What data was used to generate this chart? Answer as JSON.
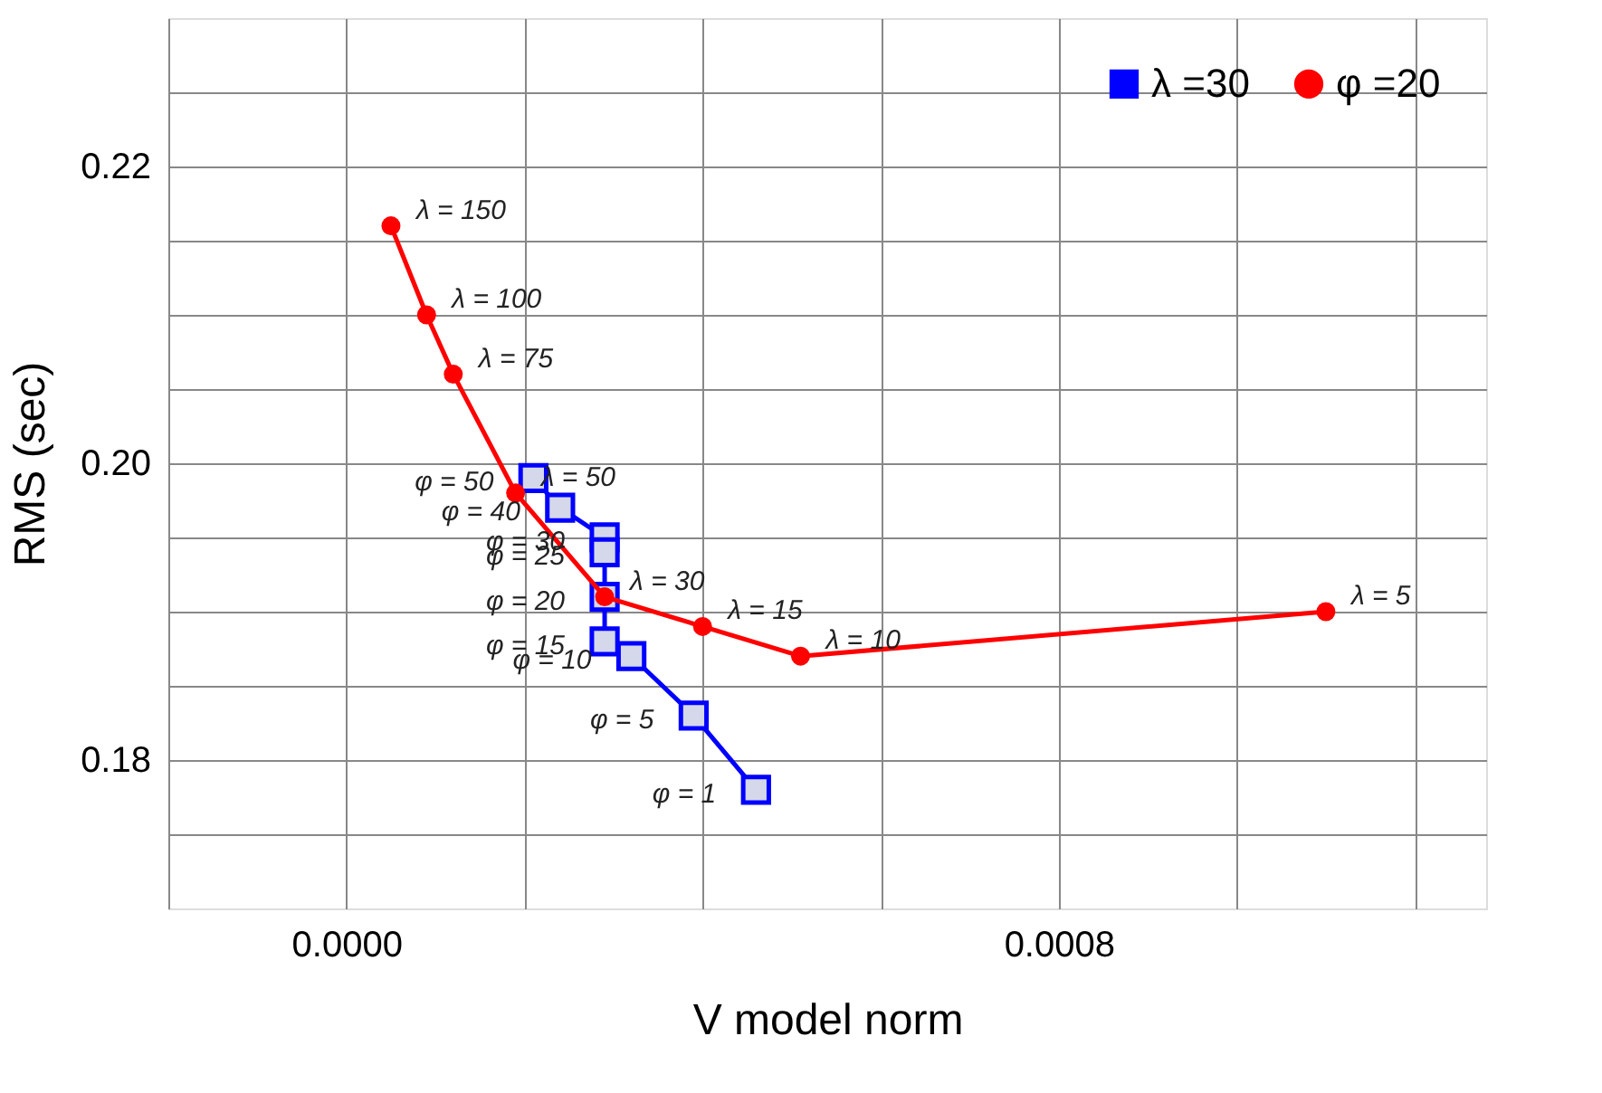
{
  "chart_data": {
    "type": "line",
    "xlabel": "V model norm",
    "ylabel": "RMS (sec)",
    "xlim": [
      -0.0002,
      0.00128
    ],
    "ylim": [
      0.17,
      0.23
    ],
    "xticks": [
      {
        "value": -0.0002,
        "label": null
      },
      {
        "value": 0.0,
        "label": "0.0000"
      },
      {
        "value": 0.0002,
        "label": null
      },
      {
        "value": 0.0004,
        "label": null
      },
      {
        "value": 0.0006,
        "label": null
      },
      {
        "value": 0.0008,
        "label": "0.0008"
      },
      {
        "value": 0.001,
        "label": null
      },
      {
        "value": 0.0012,
        "label": null
      }
    ],
    "yticks": [
      {
        "value": 0.175,
        "label": null
      },
      {
        "value": 0.18,
        "label": "0.18"
      },
      {
        "value": 0.185,
        "label": null
      },
      {
        "value": 0.19,
        "label": null
      },
      {
        "value": 0.195,
        "label": null
      },
      {
        "value": 0.2,
        "label": "0.20"
      },
      {
        "value": 0.205,
        "label": null
      },
      {
        "value": 0.21,
        "label": null
      },
      {
        "value": 0.215,
        "label": null
      },
      {
        "value": 0.22,
        "label": "0.22"
      },
      {
        "value": 0.225,
        "label": null
      }
    ],
    "grid": true,
    "legend": "top right",
    "line_style": "solid",
    "series": [
      {
        "name": "λ =30",
        "color": "#0000ff",
        "marker": "square",
        "x": [
          0.00021,
          0.00024,
          0.00029,
          0.00029,
          0.00029,
          0.00029,
          0.00032,
          0.00039,
          0.00046
        ],
        "values": [
          0.199,
          0.197,
          0.195,
          0.194,
          0.191,
          0.188,
          0.187,
          0.183,
          0.178
        ]
      },
      {
        "name": "φ =20",
        "color": "#ff0000",
        "marker": "circle",
        "x": [
          5e-05,
          9e-05,
          0.00012,
          0.00019,
          0.00029,
          0.0004,
          0.00051,
          0.0011
        ],
        "values": [
          0.216,
          0.21,
          0.206,
          0.198,
          0.191,
          0.189,
          0.187,
          0.19
        ]
      }
    ],
    "annotations": [
      {
        "text": "λ = 150",
        "x": 5e-05,
        "y": 0.216
      },
      {
        "text": "λ = 100",
        "x": 9e-05,
        "y": 0.21
      },
      {
        "text": "λ = 75",
        "x": 0.00012,
        "y": 0.206
      },
      {
        "text": "λ = 50",
        "x": 0.00019,
        "y": 0.198
      },
      {
        "text": "λ = 30",
        "x": 0.00029,
        "y": 0.191
      },
      {
        "text": "λ = 15",
        "x": 0.0004,
        "y": 0.189
      },
      {
        "text": "λ = 10",
        "x": 0.00051,
        "y": 0.187
      },
      {
        "text": "λ = 5",
        "x": 0.0011,
        "y": 0.19
      },
      {
        "text": "φ = 50",
        "x": 0.00021,
        "y": 0.199
      },
      {
        "text": "φ = 40",
        "x": 0.00024,
        "y": 0.197
      },
      {
        "text": "φ = 30",
        "x": 0.00029,
        "y": 0.195
      },
      {
        "text": "φ = 25",
        "x": 0.00029,
        "y": 0.194
      },
      {
        "text": "φ = 20",
        "x": 0.00029,
        "y": 0.191
      },
      {
        "text": "φ = 15",
        "x": 0.00029,
        "y": 0.188
      },
      {
        "text": "φ = 10",
        "x": 0.00032,
        "y": 0.187
      },
      {
        "text": "φ = 5",
        "x": 0.00039,
        "y": 0.183
      },
      {
        "text": "φ = 1",
        "x": 0.00046,
        "y": 0.178
      }
    ]
  }
}
